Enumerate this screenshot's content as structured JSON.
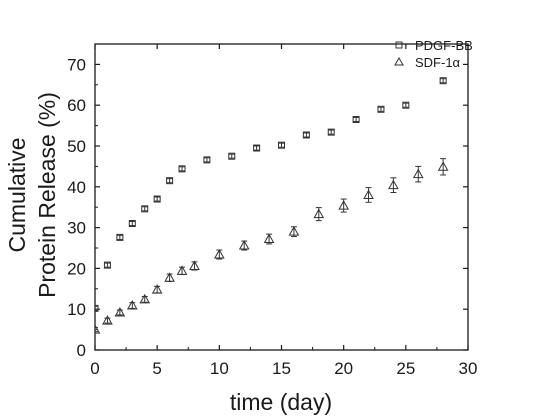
{
  "chart_data": {
    "type": "scatter",
    "title": "",
    "xlabel": "time (day)",
    "ylabel_lines": [
      "Cumulative",
      "Protein Release (%)"
    ],
    "xlim": [
      0,
      30
    ],
    "ylim": [
      0,
      75
    ],
    "x_ticks": [
      0,
      5,
      10,
      15,
      20,
      25,
      30
    ],
    "y_ticks": [
      0,
      10,
      20,
      30,
      40,
      50,
      60,
      70
    ],
    "grid": false,
    "legend_position": "top-right",
    "series": [
      {
        "name": "PDGF-BB",
        "marker": "square",
        "color": "#333333",
        "x": [
          0,
          1,
          2,
          3,
          4,
          5,
          6,
          7,
          9,
          11,
          13,
          15,
          17,
          19,
          21,
          23,
          25,
          28
        ],
        "y": [
          10.2,
          20.8,
          27.6,
          31.0,
          34.6,
          37.0,
          41.5,
          44.4,
          46.6,
          47.5,
          49.5,
          50.2,
          52.7,
          53.4,
          56.5,
          59.0,
          60.0,
          66.0
        ],
        "error": [
          0.5,
          0.5,
          0.5,
          0.5,
          0.5,
          0.5,
          0.5,
          0.5,
          0.5,
          0.5,
          0.5,
          0.5,
          0.5,
          0.5,
          0.5,
          0.5,
          0.5,
          0.5
        ]
      },
      {
        "name": "SDF-1α",
        "marker": "triangle",
        "color": "#333333",
        "x": [
          0,
          1,
          2,
          3,
          4,
          5,
          6,
          7,
          8,
          10,
          12,
          14,
          16,
          18,
          20,
          22,
          24,
          26,
          28
        ],
        "y": [
          5.0,
          7.2,
          9.2,
          10.9,
          12.4,
          14.8,
          17.7,
          19.4,
          20.6,
          23.4,
          25.6,
          27.2,
          29.0,
          33.3,
          35.4,
          38.0,
          40.4,
          43.1,
          44.9
        ],
        "error": [
          0.5,
          0.6,
          0.6,
          0.7,
          0.7,
          0.8,
          0.9,
          0.9,
          1.0,
          1.1,
          1.1,
          1.2,
          1.2,
          1.6,
          1.6,
          1.8,
          1.8,
          1.9,
          2.0
        ]
      }
    ]
  }
}
